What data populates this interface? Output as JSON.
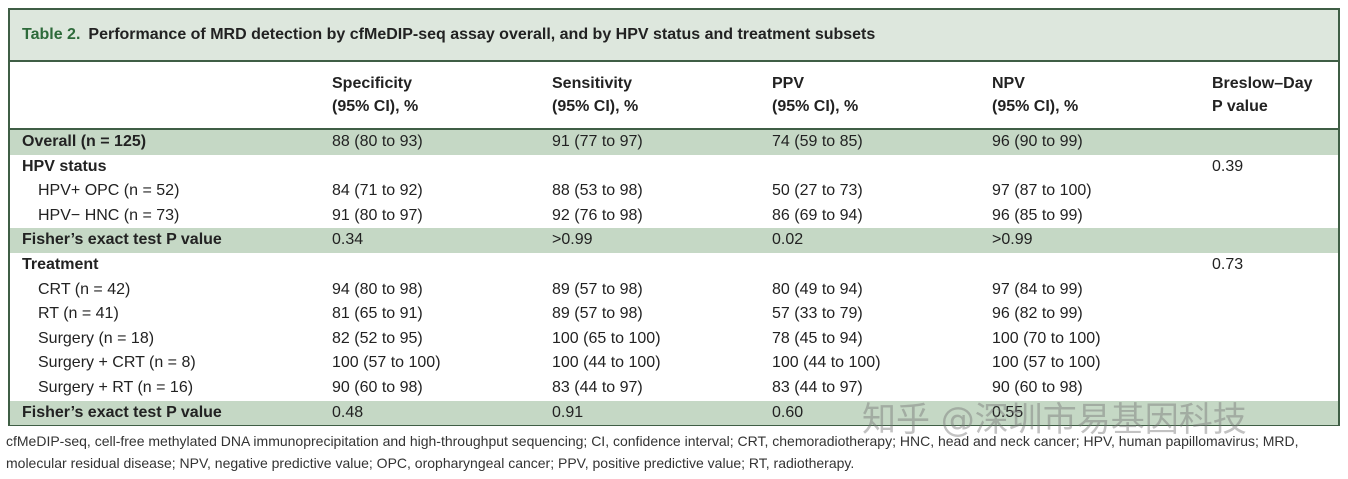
{
  "table": {
    "number": "Table 2.",
    "title": "Performance of MRD detection by cfMeDIP-seq assay overall, and by HPV status and treatment subsets",
    "headers": [
      {
        "l1": "",
        "l2": ""
      },
      {
        "l1": "Specificity",
        "l2": "(95% CI), %"
      },
      {
        "l1": "Sensitivity",
        "l2": "(95% CI), %"
      },
      {
        "l1": "PPV",
        "l2": "(95% CI), %"
      },
      {
        "l1": "NPV",
        "l2": "(95% CI), %"
      },
      {
        "l1": "Breslow–Day",
        "l2": "P value"
      }
    ],
    "rows": [
      {
        "style": "shaded bold",
        "cells": [
          "Overall (n = 125)",
          "88 (80 to 93)",
          "91 (77 to 97)",
          "74 (59 to 85)",
          "96 (90 to 99)",
          ""
        ]
      },
      {
        "style": "bold",
        "cells": [
          "HPV status",
          "",
          "",
          "",
          "",
          "0.39"
        ]
      },
      {
        "style": "indent",
        "cells": [
          "HPV+ OPC (n = 52)",
          "84 (71 to 92)",
          "88 (53 to 98)",
          "50 (27 to 73)",
          "97 (87 to 100)",
          ""
        ]
      },
      {
        "style": "indent",
        "cells": [
          "HPV− HNC (n = 73)",
          "91 (80 to 97)",
          "92 (76 to 98)",
          "86 (69 to 94)",
          "96 (85 to 99)",
          ""
        ]
      },
      {
        "style": "shaded bold",
        "cells": [
          "Fisher’s exact test P value",
          "0.34",
          ">0.99",
          "0.02",
          ">0.99",
          ""
        ]
      },
      {
        "style": "bold",
        "cells": [
          "Treatment",
          "",
          "",
          "",
          "",
          "0.73"
        ]
      },
      {
        "style": "indent",
        "cells": [
          "CRT (n = 42)",
          "94 (80 to 98)",
          "89 (57 to 98)",
          "80 (49 to 94)",
          "97 (84 to 99)",
          ""
        ]
      },
      {
        "style": "indent",
        "cells": [
          "RT (n = 41)",
          "81 (65 to 91)",
          "89 (57 to 98)",
          "57 (33 to 79)",
          "96 (82 to 99)",
          ""
        ]
      },
      {
        "style": "indent",
        "cells": [
          "Surgery (n = 18)",
          "82 (52 to 95)",
          "100 (65 to 100)",
          "78 (45 to 94)",
          "100 (70 to 100)",
          ""
        ]
      },
      {
        "style": "indent",
        "cells": [
          "Surgery + CRT (n = 8)",
          "100 (57 to 100)",
          "100 (44 to 100)",
          "100 (44 to 100)",
          "100 (57 to 100)",
          ""
        ]
      },
      {
        "style": "indent",
        "cells": [
          "Surgery + RT (n = 16)",
          "90 (60 to 98)",
          "83 (44 to 97)",
          "83 (44 to 97)",
          "90 (60 to 98)",
          ""
        ]
      },
      {
        "style": "shaded bold",
        "cells": [
          "Fisher’s exact test P value",
          "0.48",
          "0.91",
          "0.60",
          "0.55",
          ""
        ]
      }
    ],
    "footnote": "cfMeDIP-seq, cell-free methylated DNA immunoprecipitation and high-throughput sequencing; CI, confidence interval; CRT, chemoradiotherapy; HNC, head and neck cancer; HPV, human papillomavirus; MRD, molecular residual disease; NPV, negative predictive value; OPC, oropharyngeal cancer; PPV, positive predictive value; RT, radiotherapy."
  },
  "watermark": "知乎 @深圳市易基因科技",
  "colors": {
    "border": "#3f5e45",
    "caption_bg": "#dde7dd",
    "shade": "#c5d8c5",
    "title_num": "#2d6a3a"
  }
}
